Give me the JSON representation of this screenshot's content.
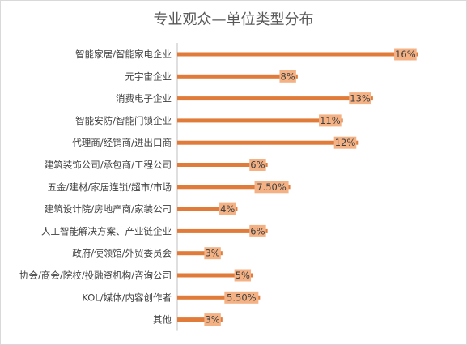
{
  "chart_data": {
    "type": "bar",
    "orientation": "horizontal",
    "title": "专业观众—单位类型分布",
    "categories": [
      "智能家居/智能家电企业",
      "元宇宙企业",
      "消费电子企业",
      "智能安防/智能门锁企业",
      "代理商/经销商/进出口商",
      "建筑装饰公司/承包商/工程公司",
      "五金/建材/家居连锁/超市/市场",
      "建筑设计院/房地产商/家装公司",
      "人工智能解决方案、产业链企业",
      "政府/使领馆/外贸委员会",
      "协会/商会/院校/投融资机构/咨询公司",
      "KOL/媒体/内容创作者",
      "其他"
    ],
    "values": [
      16,
      8,
      13,
      11,
      12,
      6,
      7.5,
      4,
      6,
      3,
      5,
      5.5,
      3
    ],
    "data_labels": [
      "16%",
      "8%",
      "13%",
      "11%",
      "12%",
      "6%",
      "7.50%",
      "4%",
      "6%",
      "3%",
      "5%",
      "5.50%",
      "3%"
    ],
    "xlim": [
      0,
      16.5
    ],
    "grid": false,
    "legend": "none",
    "bar_color": "#e07b39",
    "label_bg_color": "#f4b183"
  }
}
